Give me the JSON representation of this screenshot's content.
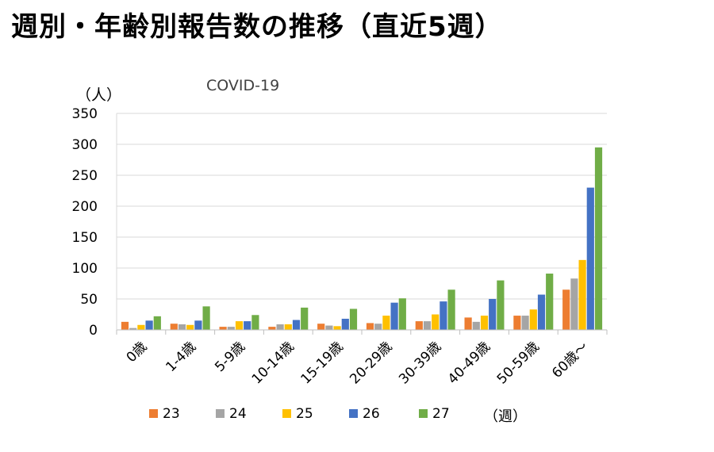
{
  "page": {
    "title": "週別・年齢別報告数の推移（直近5週）"
  },
  "chart_data": {
    "type": "bar",
    "title": "COVID-19",
    "ylabel": "（人）",
    "legend_title": "（週）",
    "legend_position": "bottom",
    "ylim": [
      0,
      350
    ],
    "yticks": [
      0,
      50,
      100,
      150,
      200,
      250,
      300,
      350
    ],
    "grid": true,
    "categories": [
      "0歳",
      "1-4歳",
      "5-9歳",
      "10-14歳",
      "15-19歳",
      "20-29歳",
      "30-39歳",
      "40-49歳",
      "50-59歳",
      "60歳～"
    ],
    "series": [
      {
        "name": "23",
        "color": "#ED7D31",
        "values": [
          13,
          10,
          5,
          5,
          10,
          11,
          14,
          20,
          23,
          65
        ]
      },
      {
        "name": "24",
        "color": "#A5A5A5",
        "values": [
          3,
          9,
          5,
          9,
          7,
          10,
          14,
          13,
          23,
          83
        ]
      },
      {
        "name": "25",
        "color": "#FFC000",
        "values": [
          8,
          8,
          14,
          9,
          6,
          23,
          25,
          23,
          33,
          113
        ]
      },
      {
        "name": "26",
        "color": "#4472C4",
        "values": [
          15,
          15,
          14,
          16,
          18,
          44,
          46,
          50,
          57,
          230
        ]
      },
      {
        "name": "27",
        "color": "#70AD47",
        "values": [
          22,
          38,
          24,
          36,
          34,
          51,
          65,
          80,
          91,
          295
        ]
      }
    ]
  }
}
